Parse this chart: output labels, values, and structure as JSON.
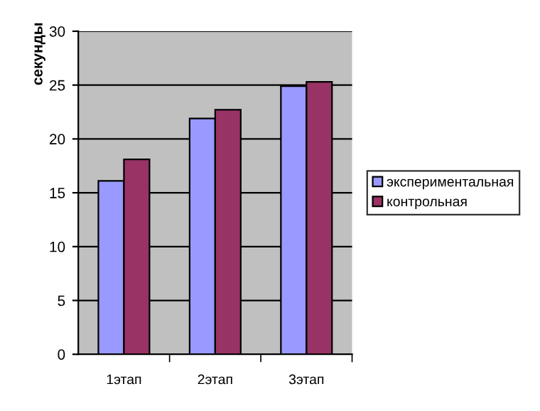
{
  "chart_data": {
    "type": "bar",
    "ylabel": "секунды",
    "categories": [
      "1этап",
      "2этап",
      "3этап"
    ],
    "series": [
      {
        "name": "экспериментальная",
        "color": "#9999ff",
        "values": [
          16.1,
          21.9,
          24.9
        ]
      },
      {
        "name": "контрольная",
        "color": "#993366",
        "values": [
          18.1,
          22.7,
          25.3
        ]
      }
    ],
    "ylim": [
      0,
      30
    ],
    "yticks": [
      0,
      5,
      10,
      15,
      20,
      25,
      30
    ],
    "grid": "y",
    "legend": "right"
  }
}
